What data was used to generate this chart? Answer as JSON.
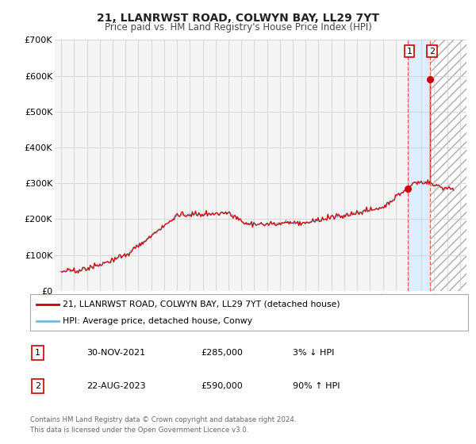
{
  "title_line1": "21, LLANRWST ROAD, COLWYN BAY, LL29 7YT",
  "title_line2": "Price paid vs. HM Land Registry's House Price Index (HPI)",
  "ylim": [
    0,
    700000
  ],
  "yticks": [
    0,
    100000,
    200000,
    300000,
    400000,
    500000,
    600000,
    700000
  ],
  "ytick_labels": [
    "£0",
    "£100K",
    "£200K",
    "£300K",
    "£400K",
    "£500K",
    "£600K",
    "£700K"
  ],
  "xlim_min": 1994.5,
  "xlim_max": 2026.5,
  "hpi_color": "#7ab8d9",
  "price_color": "#cc0000",
  "marker_color": "#cc0000",
  "shaded_region_color": "#ddeeff",
  "dashed_line_color": "#e06060",
  "point1_x": 2021.92,
  "point1_y": 285000,
  "point1_label": "1",
  "point2_x": 2023.65,
  "point2_y": 590000,
  "point2_label": "2",
  "legend_label1": "21, LLANRWST ROAD, COLWYN BAY, LL29 7YT (detached house)",
  "legend_label2": "HPI: Average price, detached house, Conwy",
  "table_rows": [
    {
      "num": "1",
      "date": "30-NOV-2021",
      "price": "£285,000",
      "hpi": "3% ↓ HPI"
    },
    {
      "num": "2",
      "date": "22-AUG-2023",
      "price": "£590,000",
      "hpi": "90% ↑ HPI"
    }
  ],
  "footer_line1": "Contains HM Land Registry data © Crown copyright and database right 2024.",
  "footer_line2": "This data is licensed under the Open Government Licence v3.0.",
  "background_color": "#ffffff",
  "grid_color": "#cccccc"
}
